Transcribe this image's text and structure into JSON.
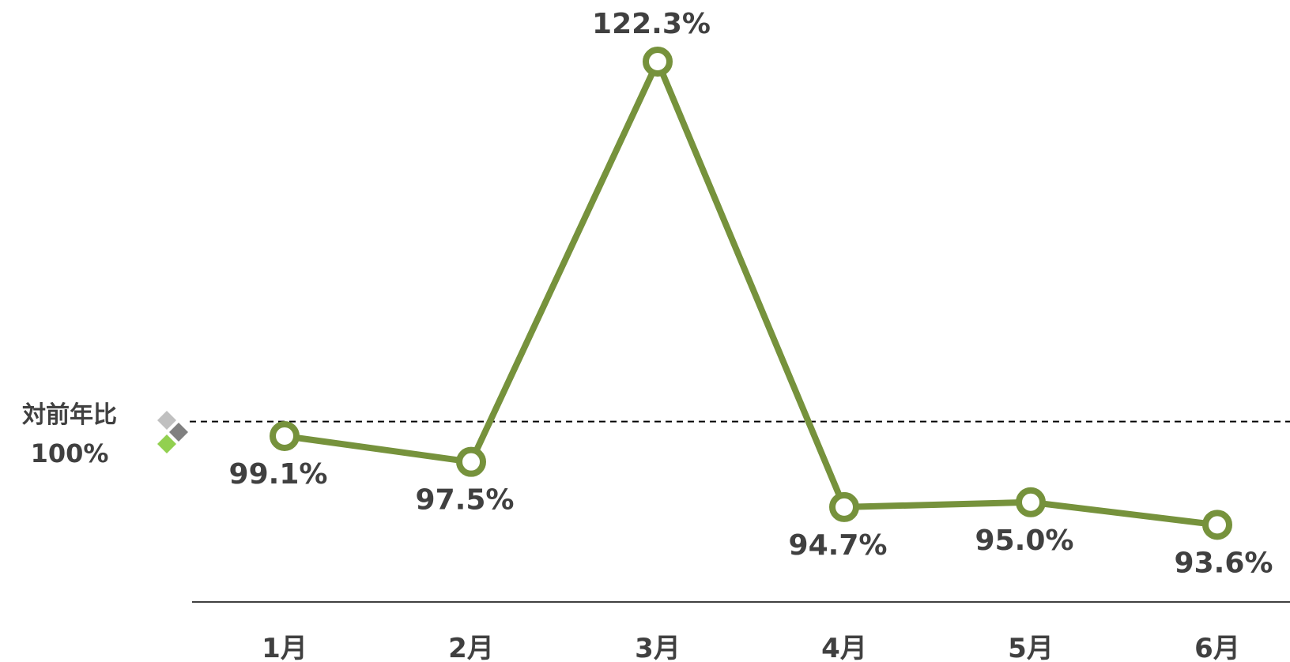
{
  "reference": {
    "label": "対前年比",
    "value_label": "100%",
    "value": 100
  },
  "colors": {
    "line": "#76923c",
    "text": "#404040",
    "axis": "#404040",
    "reference_line": "#000000",
    "diamond_light_gray": "#c0c0c0",
    "diamond_dark_gray": "#808080",
    "diamond_green": "#92d050"
  },
  "chart_data": {
    "type": "line",
    "categories": [
      "1月",
      "2月",
      "3月",
      "4月",
      "5月",
      "6月"
    ],
    "series": [
      {
        "values": [
          99.1,
          97.5,
          122.3,
          94.7,
          95.0,
          93.6
        ],
        "labels": [
          "99.1%",
          "97.5%",
          "122.3%",
          "94.7%",
          "95.0%",
          "93.6%"
        ]
      }
    ],
    "reference_line": 100,
    "title": "",
    "xlabel": "",
    "ylabel": "",
    "ylim": [
      89.8,
      122.3
    ],
    "grid": false,
    "legend": "none"
  }
}
